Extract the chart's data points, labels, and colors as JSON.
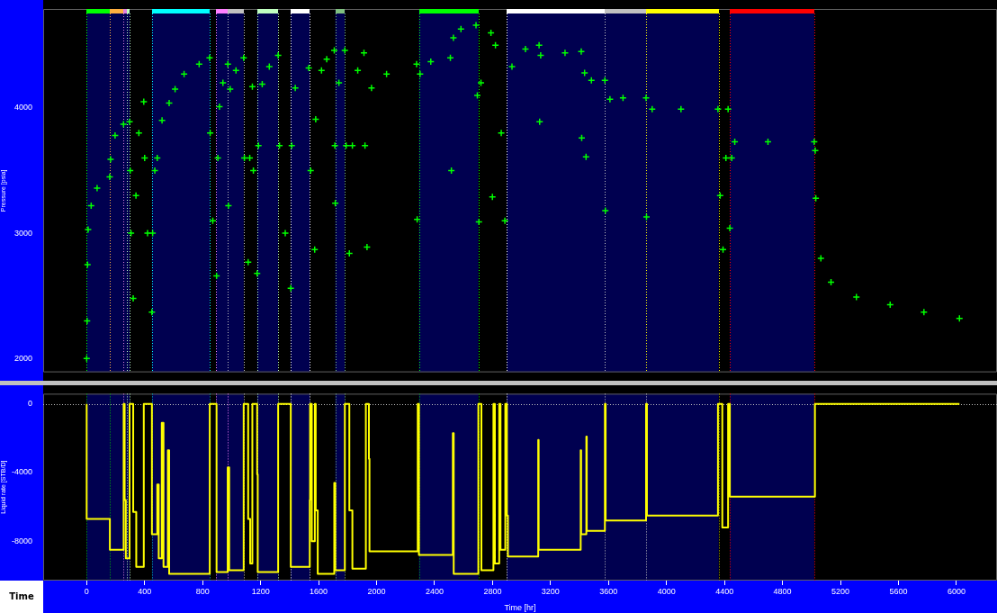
{
  "chart_data": [
    {
      "type": "scatter",
      "ylabel": "Pressure [psia]",
      "xlim": [
        -300,
        6280
      ],
      "ylim": [
        1890,
        4790
      ],
      "yticks": [
        2000,
        3000,
        4000
      ],
      "tick_labels": "y",
      "grid": false,
      "legend": false,
      "marker": "cross",
      "x": [
        0,
        3,
        6,
        10,
        31,
        72,
        159,
        165,
        196,
        254,
        296,
        300,
        306,
        321,
        340,
        360,
        394,
        400,
        420,
        450,
        455,
        470,
        487,
        520,
        569,
        610,
        672,
        776,
        848,
        852,
        870,
        896,
        905,
        916,
        940,
        974,
        978,
        990,
        1030,
        1083,
        1088,
        1114,
        1125,
        1143,
        1150,
        1176,
        1185,
        1211,
        1260,
        1321,
        1330,
        1370,
        1408,
        1415,
        1439,
        1532,
        1545,
        1573,
        1580,
        1620,
        1656,
        1708,
        1712,
        1715,
        1740,
        1781,
        1790,
        1812,
        1833,
        1870,
        1913,
        1920,
        1934,
        1965,
        2069,
        2276,
        2280,
        2300,
        2374,
        2509,
        2516,
        2530,
        2582,
        2686,
        2695,
        2706,
        2720,
        2789,
        2799,
        2820,
        2860,
        2885,
        2934,
        3027,
        3121,
        3125,
        3132,
        3300,
        3412,
        3415,
        3435,
        3445,
        3482,
        3575,
        3578,
        3610,
        3700,
        3859,
        3862,
        3901,
        4100,
        4355,
        4370,
        4390,
        4410,
        4425,
        4437,
        4450,
        4471,
        4700,
        5019,
        5026,
        5030,
        5065,
        5135,
        5310,
        5543,
        5776,
        6021
      ],
      "values": [
        2000,
        2300,
        2750,
        3030,
        3220,
        3360,
        3450,
        3590,
        3780,
        3870,
        3890,
        3500,
        3000,
        2480,
        3300,
        3800,
        4050,
        3600,
        3000,
        2370,
        3000,
        3500,
        3600,
        3900,
        4040,
        4150,
        4270,
        4350,
        4400,
        3800,
        3100,
        2660,
        3600,
        4010,
        4200,
        4350,
        3220,
        4150,
        4300,
        4400,
        3600,
        2770,
        3600,
        4170,
        3500,
        2680,
        3700,
        4190,
        4330,
        4420,
        3700,
        3000,
        2560,
        3700,
        4160,
        4320,
        3500,
        2870,
        3910,
        4300,
        4390,
        4460,
        3700,
        3240,
        4200,
        4460,
        3700,
        2840,
        3700,
        4300,
        4440,
        3700,
        2890,
        4160,
        4270,
        4350,
        3110,
        4270,
        4370,
        4400,
        3500,
        4560,
        4630,
        4660,
        4100,
        3090,
        4200,
        4600,
        3290,
        4500,
        3800,
        3100,
        4330,
        4470,
        4500,
        3890,
        4420,
        4440,
        4450,
        3760,
        4280,
        3610,
        4220,
        4220,
        3180,
        4070,
        4080,
        4080,
        3130,
        3990,
        3990,
        3990,
        3300,
        2870,
        3600,
        3990,
        3040,
        3600,
        3730,
        3730,
        3730,
        3660,
        3280,
        2800,
        2610,
        2490,
        2430,
        2370,
        2320
      ],
      "color": "#00ff00",
      "bands": [
        {
          "axis": "x",
          "from": 0,
          "to": 297,
          "color": "#000050"
        },
        {
          "axis": "x",
          "from": 450,
          "to": 850,
          "color": "#000050"
        },
        {
          "axis": "x",
          "from": 894,
          "to": 1083,
          "color": "#000050"
        },
        {
          "axis": "x",
          "from": 1176,
          "to": 1321,
          "color": "#000050"
        },
        {
          "axis": "x",
          "from": 1406,
          "to": 1539,
          "color": "#000050"
        },
        {
          "axis": "x",
          "from": 1715,
          "to": 1781,
          "color": "#000050"
        },
        {
          "axis": "x",
          "from": 2292,
          "to": 2702,
          "color": "#000050"
        },
        {
          "axis": "x",
          "from": 2899,
          "to": 4360,
          "color": "#000050"
        },
        {
          "axis": "x",
          "from": 4437,
          "to": 5019,
          "color": "#000050"
        }
      ],
      "ref_lines": [
        {
          "axis": "x",
          "value": 0,
          "color": "#00ff00",
          "line_style": "dotted"
        },
        {
          "axis": "x",
          "value": 160,
          "color": "#ffb040",
          "line_style": "dotted"
        },
        {
          "axis": "x",
          "value": 255,
          "color": "#e080e0",
          "line_style": "dotted"
        },
        {
          "axis": "x",
          "value": 276,
          "color": "#c0ffc0",
          "line_style": "dotted"
        },
        {
          "axis": "x",
          "value": 297,
          "color": "#c0ffc0",
          "line_style": "dotted"
        },
        {
          "axis": "x",
          "value": 450,
          "color": "#00ffff",
          "line_style": "dotted"
        },
        {
          "axis": "x",
          "value": 850,
          "color": "#00ffff",
          "line_style": "dotted"
        },
        {
          "axis": "x",
          "value": 894,
          "color": "#ff80ff",
          "line_style": "dotted"
        },
        {
          "axis": "x",
          "value": 973,
          "color": "#c0c0c0",
          "line_style": "dotted"
        },
        {
          "axis": "x",
          "value": 1083,
          "color": "#c0c0c0",
          "line_style": "dotted"
        },
        {
          "axis": "x",
          "value": 1176,
          "color": "#c0ffc0",
          "line_style": "dotted"
        },
        {
          "axis": "x",
          "value": 1321,
          "color": "#c0ffc0",
          "line_style": "dotted"
        },
        {
          "axis": "x",
          "value": 1406,
          "color": "#ffffff",
          "line_style": "dotted"
        },
        {
          "axis": "x",
          "value": 1539,
          "color": "#ffffff",
          "line_style": "dotted"
        },
        {
          "axis": "x",
          "value": 1715,
          "color": "#80c080",
          "line_style": "dotted"
        },
        {
          "axis": "x",
          "value": 1781,
          "color": "#80c080",
          "line_style": "dotted"
        },
        {
          "axis": "x",
          "value": 2292,
          "color": "#00ff00",
          "line_style": "dotted"
        },
        {
          "axis": "x",
          "value": 2702,
          "color": "#00ff00",
          "line_style": "dotted"
        },
        {
          "axis": "x",
          "value": 2899,
          "color": "#ffffff",
          "line_style": "dotted"
        },
        {
          "axis": "x",
          "value": 3575,
          "color": "#c0c0c0",
          "line_style": "dotted"
        },
        {
          "axis": "x",
          "value": 3859,
          "color": "#ffff00",
          "line_style": "dotted"
        },
        {
          "axis": "x",
          "value": 4360,
          "color": "#ffff00",
          "line_style": "dotted"
        },
        {
          "axis": "x",
          "value": 4437,
          "color": "#ff0000",
          "line_style": "dotted"
        },
        {
          "axis": "x",
          "value": 5019,
          "color": "#ff0000",
          "line_style": "dotted"
        }
      ]
    },
    {
      "type": "step",
      "ylabel": "Liquid rate [STB/D]",
      "xlabel": "Time [hr]",
      "xlim": [
        -300,
        6280
      ],
      "ylim": [
        -10300,
        600
      ],
      "xticks": [
        0,
        400,
        800,
        1200,
        1600,
        2000,
        2400,
        2800,
        3200,
        3600,
        4000,
        4400,
        4800,
        5200,
        5600,
        6000
      ],
      "yticks": [
        0,
        -4000,
        -8000
      ],
      "grid": false,
      "legend": false,
      "marker": "none",
      "line_style": "solid",
      "annotations": [
        "Time"
      ],
      "x": [
        0,
        0,
        160,
        255,
        262,
        270,
        296,
        321,
        342,
        394,
        450,
        487,
        497,
        518,
        530,
        560,
        569,
        849,
        896,
        973,
        983,
        1083,
        1114,
        1128,
        1143,
        1176,
        1180,
        1321,
        1408,
        1539,
        1541,
        1553,
        1574,
        1580,
        1594,
        1708,
        1715,
        1781,
        1812,
        1833,
        1926,
        1947,
        1951,
        2284,
        2292,
        2526,
        2532,
        2702,
        2723,
        2806,
        2816,
        2846,
        2855,
        2888,
        2899,
        2906,
        3115,
        3118,
        3408,
        3411,
        3447,
        3450,
        3575,
        3580,
        3859,
        3865,
        4355,
        4385,
        4425,
        4437,
        5024,
        6021
      ],
      "values": [
        0,
        -6700,
        -8500,
        0,
        -5600,
        -9000,
        0,
        -6300,
        -9500,
        0,
        -7600,
        -4700,
        -9000,
        -1100,
        -9500,
        -2700,
        -9900,
        0,
        -9800,
        -3700,
        -9700,
        0,
        -6700,
        -9300,
        0,
        -4100,
        -9800,
        0,
        -9500,
        -5600,
        0,
        -8000,
        0,
        -6200,
        -9900,
        -4600,
        -9700,
        0,
        -6200,
        -9600,
        0,
        -3200,
        -8600,
        0,
        -8800,
        -1700,
        -9900,
        0,
        -9700,
        0,
        -9300,
        0,
        -8500,
        0,
        -6500,
        -8900,
        -2100,
        -8500,
        -2700,
        -7600,
        -1900,
        -7400,
        0,
        -6800,
        0,
        -6500,
        0,
        -7200,
        0,
        -5400,
        0,
        0
      ],
      "color": "#ffff00",
      "ref_lines": [
        {
          "axis": "y",
          "value": 0,
          "color": "#c0c0c0",
          "line_style": "dotted"
        },
        {
          "axis": "x",
          "value": 0,
          "color": "#00c000",
          "line_style": "dotted"
        },
        {
          "axis": "x",
          "value": 160,
          "color": "#00c000",
          "line_style": "dotted"
        },
        {
          "axis": "x",
          "value": 255,
          "color": "#e080e0",
          "line_style": "dotted"
        },
        {
          "axis": "x",
          "value": 276,
          "color": "#c0ffc0",
          "line_style": "dotted"
        },
        {
          "axis": "x",
          "value": 297,
          "color": "#c0ffc0",
          "line_style": "dotted"
        },
        {
          "axis": "x",
          "value": 450,
          "color": "#00c0c0",
          "line_style": "dotted"
        },
        {
          "axis": "x",
          "value": 850,
          "color": "#00c0c0",
          "line_style": "dotted"
        },
        {
          "axis": "x",
          "value": 894,
          "color": "#ff80ff",
          "line_style": "dotted"
        },
        {
          "axis": "x",
          "value": 973,
          "color": "#ff80ff",
          "line_style": "dotted"
        },
        {
          "axis": "x",
          "value": 1083,
          "color": "#c0c0c0",
          "line_style": "dotted"
        },
        {
          "axis": "x",
          "value": 1176,
          "color": "#c0ffc0",
          "line_style": "dotted"
        },
        {
          "axis": "x",
          "value": 1321,
          "color": "#c0ffc0",
          "line_style": "dotted"
        },
        {
          "axis": "x",
          "value": 1406,
          "color": "#ffffff",
          "line_style": "dotted"
        },
        {
          "axis": "x",
          "value": 1539,
          "color": "#ffffff",
          "line_style": "dotted"
        },
        {
          "axis": "x",
          "value": 1715,
          "color": "#80c080",
          "line_style": "dotted"
        },
        {
          "axis": "x",
          "value": 1781,
          "color": "#80c080",
          "line_style": "dotted"
        },
        {
          "axis": "x",
          "value": 2292,
          "color": "#00c000",
          "line_style": "dotted"
        },
        {
          "axis": "x",
          "value": 2702,
          "color": "#00c000",
          "line_style": "dotted"
        },
        {
          "axis": "x",
          "value": 2899,
          "color": "#ffffff",
          "line_style": "dotted"
        },
        {
          "axis": "x",
          "value": 3575,
          "color": "#c0c0c0",
          "line_style": "dotted"
        },
        {
          "axis": "x",
          "value": 3859,
          "color": "#c0c0c0",
          "line_style": "dotted"
        },
        {
          "axis": "x",
          "value": 4360,
          "color": "#c0c000",
          "line_style": "dotted"
        },
        {
          "axis": "x",
          "value": 4437,
          "color": "#ff0000",
          "line_style": "dotted"
        },
        {
          "axis": "x",
          "value": 5019,
          "color": "#ff0000",
          "line_style": "dotted"
        }
      ],
      "bands": [
        {
          "axis": "x",
          "from": 0,
          "to": 297,
          "color": "#000050"
        },
        {
          "axis": "x",
          "from": 450,
          "to": 850,
          "color": "#000050"
        },
        {
          "axis": "x",
          "from": 894,
          "to": 1083,
          "color": "#000050"
        },
        {
          "axis": "x",
          "from": 1176,
          "to": 1321,
          "color": "#000050"
        },
        {
          "axis": "x",
          "from": 1406,
          "to": 1539,
          "color": "#000050"
        },
        {
          "axis": "x",
          "from": 1715,
          "to": 1781,
          "color": "#000050"
        },
        {
          "axis": "x",
          "from": 2292,
          "to": 2702,
          "color": "#000050"
        },
        {
          "axis": "x",
          "from": 2899,
          "to": 4360,
          "color": "#000050"
        },
        {
          "axis": "x",
          "from": 4437,
          "to": 5019,
          "color": "#000050"
        }
      ]
    }
  ]
}
